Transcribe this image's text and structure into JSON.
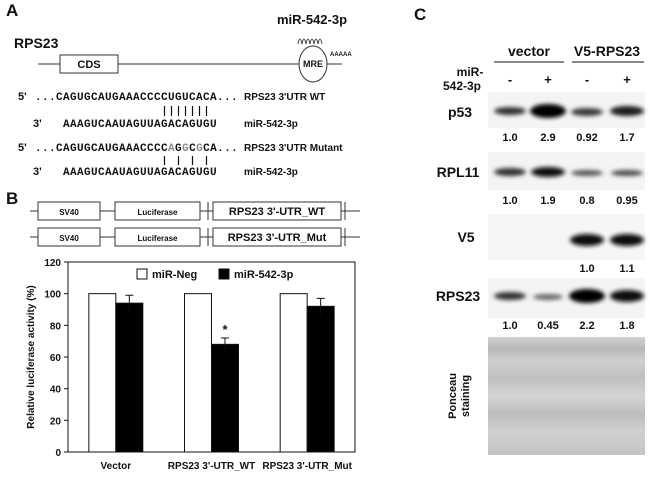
{
  "panel_a": {
    "label": "A",
    "gene": "RPS23",
    "cds": "CDS",
    "mre": "MRE",
    "polya": "AAAAA",
    "mirna": "miR-542-3p",
    "wt": {
      "end": "5'",
      "seq": "...CAGUGCAUGAAACCCCUGUCACA...",
      "name": "RPS23 3'UTR WT"
    },
    "mir1": {
      "end": "3'",
      "seq": "AAAGUCAAUAGUUAGACAGUGU",
      "name": "miR-542-3p"
    },
    "mut": {
      "end": "5'",
      "segments": [
        "...CAGUGCAUGAAACCCC",
        "A",
        "G",
        "G",
        "C",
        "G",
        "CA..."
      ],
      "name": "RPS23 3'UTR Mutant"
    },
    "mir2": {
      "end": "3'",
      "seq": "AAAGUCAAUAGUUAGACAGUGU",
      "name": "miR-542-3p"
    }
  },
  "panel_b": {
    "label": "B",
    "constructs": [
      [
        "SV40",
        "Luciferase",
        "RPS23 3'-UTR_WT"
      ],
      [
        "SV40",
        "Luciferase",
        "RPS23 3'-UTR_Mut"
      ]
    ]
  },
  "chart_data": {
    "type": "bar",
    "y_label": "Relative luciferase activity (%)",
    "categories": [
      "Vector",
      "RPS23 3'-UTR_WT",
      "RPS23 3'-UTR_Mut"
    ],
    "series": [
      {
        "name": "miR-Neg",
        "color": "#ffffff",
        "values": [
          100,
          100,
          100
        ]
      },
      {
        "name": "miR-542-3p",
        "color": "#000000",
        "values": [
          94,
          68,
          92
        ],
        "errors": [
          5,
          4,
          5
        ]
      }
    ],
    "annotations": [
      {
        "text": "*"
      }
    ],
    "ylim": [
      0,
      120
    ],
    "yticks": [
      0,
      20,
      40,
      60,
      80,
      100,
      120
    ],
    "grid": false,
    "legend": "top"
  },
  "panel_c": {
    "label": "C",
    "groups": [
      "vector",
      "V5-RPS23"
    ],
    "treatment": [
      "miR-",
      "542-3p"
    ],
    "lanes": [
      "-",
      "+",
      "-",
      "+"
    ],
    "blots": [
      {
        "name": "p53",
        "quant": [
          "1.0",
          "2.9",
          "0.92",
          "1.7"
        ]
      },
      {
        "name": "RPL11",
        "quant": [
          "1.0",
          "1.9",
          "0.8",
          "0.95"
        ]
      },
      {
        "name": "V5",
        "quant": [
          null,
          null,
          "1.0",
          "1.1"
        ]
      },
      {
        "name": "RPS23",
        "quant": [
          "1.0",
          "0.45",
          "2.2",
          "1.8"
        ]
      }
    ],
    "ponceau": [
      "Ponceau",
      "staining"
    ]
  }
}
